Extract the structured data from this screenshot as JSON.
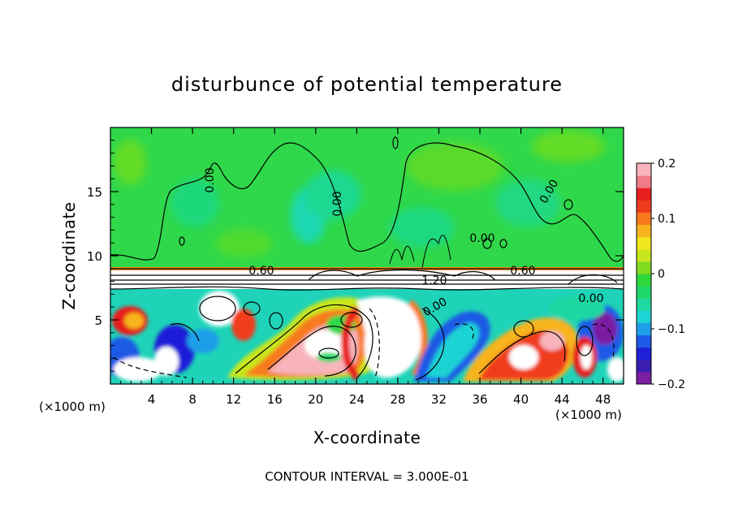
{
  "chart_data": {
    "type": "heatmap",
    "title": "disturbunce of potential temperature",
    "xlabel": "X-coordinate",
    "ylabel": "Z-coordinate",
    "x_unit_left": "(×1000 m)",
    "x_unit_right": "(×1000 m)",
    "footer": "CONTOUR INTERVAL = 3.000E-01",
    "xlim": [
      0,
      50
    ],
    "ylim": [
      0,
      20
    ],
    "x_ticks": [
      4,
      8,
      12,
      16,
      20,
      24,
      28,
      32,
      36,
      40,
      44,
      48
    ],
    "y_ticks": [
      5,
      10,
      15
    ],
    "colorbar": {
      "range": [
        -0.2,
        0.2
      ],
      "tick_labels": [
        "0.2",
        "0.1",
        "0",
        "−0.1",
        "−0.2"
      ],
      "tick_values": [
        0.2,
        0.1,
        0,
        -0.1,
        -0.2
      ],
      "colors": [
        "#7a1fa2",
        "#3a1fb0",
        "#1f1fd8",
        "#1f5ae6",
        "#1e9fe8",
        "#1ed3d3",
        "#1fd8a0",
        "#1fd86a",
        "#2fd83a",
        "#7fdc1f",
        "#c8e61e",
        "#f2e61e",
        "#f7b41e",
        "#f77a1e",
        "#f03c1e",
        "#e81e1e",
        "#f07a8a",
        "#f8b4bc"
      ]
    },
    "contour_labels": [
      {
        "text": "0.00"
      },
      {
        "text": "0.00"
      },
      {
        "text": "0.00"
      },
      {
        "text": "0.00"
      },
      {
        "text": "0.60"
      },
      {
        "text": "0.60"
      },
      {
        "text": "1.20"
      },
      {
        "text": "0.00"
      },
      {
        "text": "0.00"
      }
    ]
  }
}
